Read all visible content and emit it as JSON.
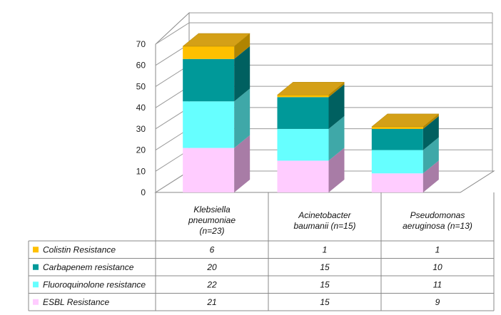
{
  "chart_data": {
    "type": "bar",
    "stacked": true,
    "three_d": true,
    "categories": [
      [
        "Klebsiella",
        "pneumoniae",
        "(n=23)"
      ],
      [
        "Acinetobacter",
        "baumanii (n=15)"
      ],
      [
        "Pseudomonas",
        "aeruginosa (n=13)"
      ]
    ],
    "ylim": [
      0,
      70
    ],
    "yticks": [
      0,
      10,
      20,
      30,
      40,
      50,
      60,
      70
    ],
    "grid": true,
    "legend_placement": "bottom-table",
    "series": [
      {
        "name": "ESBL Resistance",
        "values": [
          21,
          15,
          9
        ],
        "color": "#ffccff",
        "side_color": "#a87ca6",
        "top_color": "#ffe0ff"
      },
      {
        "name": "Fluoroquinolone resistance",
        "values": [
          22,
          15,
          11
        ],
        "color": "#66ffff",
        "side_color": "#3fa8a8",
        "top_color": "#aaffff"
      },
      {
        "name": "Carbapenem resistance",
        "values": [
          20,
          15,
          10
        ],
        "color": "#009999",
        "side_color": "#006060",
        "top_color": "#33b3b3"
      },
      {
        "name": "Colistin Resistance",
        "values": [
          6,
          1,
          1
        ],
        "color": "#ffc000",
        "side_color": "#b08400",
        "top_color": "#d4a017"
      }
    ],
    "table_rows_order": [
      "Colistin Resistance",
      "Carbapenem resistance",
      "Fluoroquinolone resistance",
      "ESBL Resistance"
    ]
  }
}
